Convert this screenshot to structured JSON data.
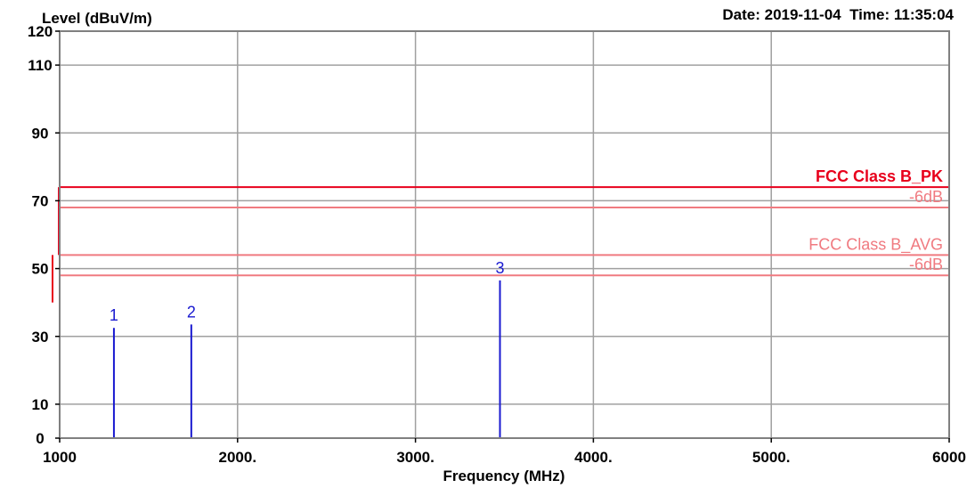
{
  "header": {
    "date_label": "Date:",
    "date_value": "2019-11-04",
    "time_label": "Time:",
    "time_value": "11:35:04"
  },
  "chart_data": {
    "type": "line",
    "title": "",
    "ylabel": "Level (dBuV/m)",
    "xlabel": "Frequency (MHz)",
    "xlim": [
      1000,
      6000
    ],
    "ylim": [
      0,
      120
    ],
    "grid": true,
    "x_ticks": [
      {
        "value": 1000,
        "label": "1000"
      },
      {
        "value": 2000,
        "label": "2000."
      },
      {
        "value": 3000,
        "label": "3000."
      },
      {
        "value": 4000,
        "label": "4000."
      },
      {
        "value": 5000,
        "label": "5000."
      },
      {
        "value": 6000,
        "label": "6000"
      }
    ],
    "y_ticks": [
      {
        "value": 0,
        "label": "0"
      },
      {
        "value": 10,
        "label": "10"
      },
      {
        "value": 30,
        "label": "30"
      },
      {
        "value": 50,
        "label": "50"
      },
      {
        "value": 70,
        "label": "70"
      },
      {
        "value": 90,
        "label": "90"
      },
      {
        "value": 110,
        "label": "110"
      },
      {
        "value": 120,
        "label": "120"
      }
    ],
    "limit_lines": [
      {
        "name": "FCC Class B_PK",
        "level": 74,
        "color": "#e8001c",
        "bold": true
      },
      {
        "name": "-6dB",
        "level": 68,
        "color": "#f07a80",
        "bold": false
      },
      {
        "name": "FCC Class B_AVG",
        "level": 54,
        "color": "#f07a80",
        "bold": false
      },
      {
        "name": "-6dB",
        "level": 48,
        "color": "#f07a80",
        "bold": false
      }
    ],
    "peaks": [
      {
        "label": "1",
        "freq": 1305,
        "level": 32.5
      },
      {
        "label": "2",
        "freq": 1740,
        "level": 33.5
      },
      {
        "label": "3",
        "freq": 3475,
        "level": 46.5
      }
    ],
    "colors": {
      "grid": "#a0a0a0",
      "axis": "#000000",
      "peak": "#1a1ad0",
      "limit_stub": "#e8001c"
    }
  }
}
